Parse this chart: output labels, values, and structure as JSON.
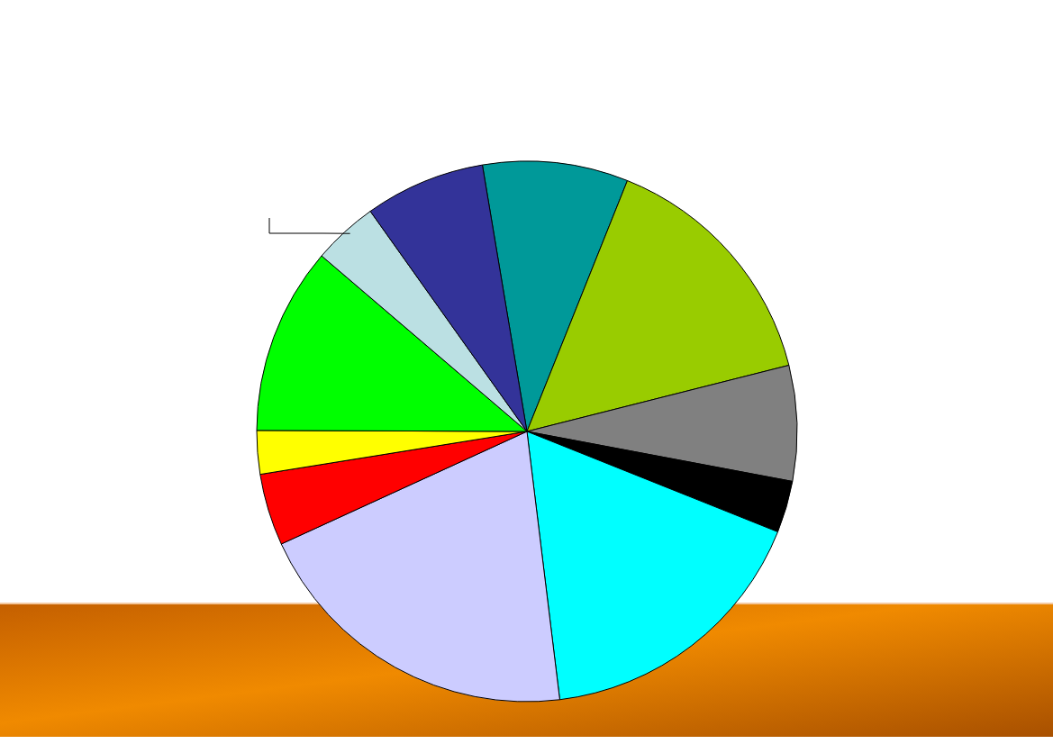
{
  "chart_data": {
    "type": "pie",
    "categories": [
      null,
      null,
      null,
      null,
      null,
      null,
      null,
      null,
      null,
      null,
      null
    ],
    "values": [
      8.7,
      15.0,
      6.9,
      3.1,
      17.0,
      20.1,
      4.3,
      2.6,
      11.2,
      3.9,
      7.2
    ],
    "colors": [
      "#009999",
      "#99cc00",
      "#808080",
      "#000000",
      "#00ffff",
      "#ccccff",
      "#ff0000",
      "#ffff00",
      "#00ff00",
      "#bbe0e3",
      "#333399"
    ]
  }
}
